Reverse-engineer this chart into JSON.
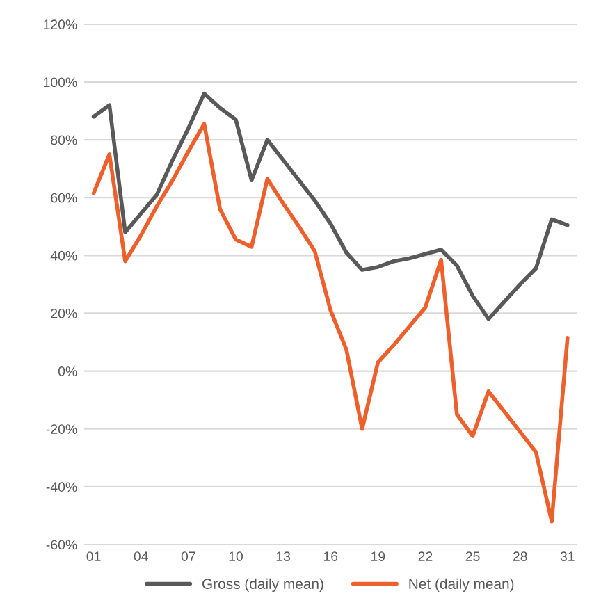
{
  "chart_data": {
    "type": "line",
    "categories": [
      "01",
      null,
      null,
      "04",
      null,
      null,
      "07",
      null,
      null,
      "10",
      null,
      null,
      "13",
      null,
      null,
      "16",
      null,
      null,
      "19",
      null,
      null,
      "22",
      null,
      null,
      "25",
      null,
      null,
      "28",
      null,
      null,
      "31"
    ],
    "series": [
      {
        "name": "Gross (daily mean)",
        "color": "#595959",
        "values": [
          88,
          92,
          48,
          54.5,
          61,
          73,
          84,
          96,
          91,
          87,
          66,
          80,
          73,
          66,
          59,
          51,
          41,
          35,
          36,
          38,
          39,
          40.5,
          42,
          36.5,
          26,
          18,
          24,
          30,
          35.5,
          52.5,
          50.5
        ]
      },
      {
        "name": "Net (daily mean)",
        "color": "#ed5f2b",
        "values": [
          61.5,
          75,
          38,
          47,
          57,
          66,
          76,
          85.5,
          56,
          45.5,
          43,
          66.5,
          58,
          50,
          41.5,
          21,
          7.5,
          -20,
          3,
          9,
          15.5,
          22,
          38.5,
          -15,
          -22.5,
          -7,
          -14,
          -21,
          -28,
          -52,
          11.5
        ]
      }
    ],
    "ylim": [
      -60,
      120
    ],
    "yticks": [
      {
        "value": -60,
        "label": "-60%"
      },
      {
        "value": -40,
        "label": "-40%"
      },
      {
        "value": -20,
        "label": "-20%"
      },
      {
        "value": 0,
        "label": "0%"
      },
      {
        "value": 20,
        "label": "20%"
      },
      {
        "value": 40,
        "label": "40%"
      },
      {
        "value": 60,
        "label": "60%"
      },
      {
        "value": 80,
        "label": "80%"
      },
      {
        "value": 100,
        "label": "100%"
      },
      {
        "value": 120,
        "label": "120%"
      }
    ],
    "grid": "y",
    "legend": "bottom",
    "marker": "none",
    "line_style": "solid"
  }
}
